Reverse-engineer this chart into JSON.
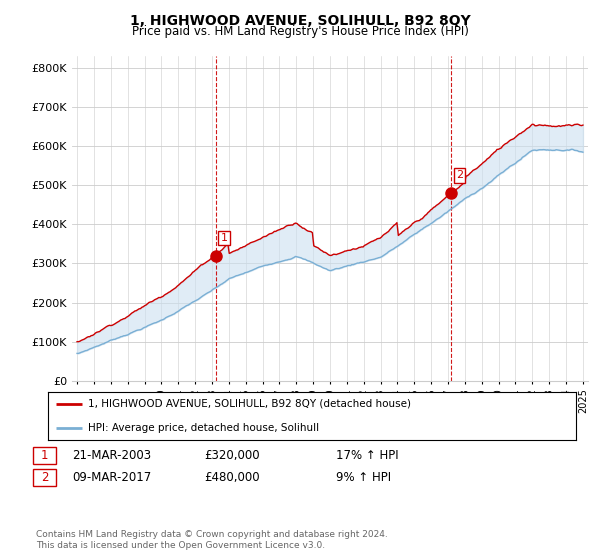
{
  "title": "1, HIGHWOOD AVENUE, SOLIHULL, B92 8QY",
  "subtitle": "Price paid vs. HM Land Registry's House Price Index (HPI)",
  "legend_line1": "1, HIGHWOOD AVENUE, SOLIHULL, B92 8QY (detached house)",
  "legend_line2": "HPI: Average price, detached house, Solihull",
  "annotation1_date": "21-MAR-2003",
  "annotation1_price": "£320,000",
  "annotation1_hpi": "17% ↑ HPI",
  "annotation1_year": 2003.22,
  "annotation1_value": 320000,
  "annotation2_date": "09-MAR-2017",
  "annotation2_price": "£480,000",
  "annotation2_hpi": "9% ↑ HPI",
  "annotation2_year": 2017.19,
  "annotation2_value": 480000,
  "red_color": "#cc0000",
  "blue_color": "#7aafd4",
  "fill_color": "#cce0f0",
  "background_color": "#ffffff",
  "grid_color": "#cccccc",
  "ylim": [
    0,
    830000
  ],
  "yticks": [
    0,
    100000,
    200000,
    300000,
    400000,
    500000,
    600000,
    700000,
    800000
  ],
  "footer1": "Contains HM Land Registry data © Crown copyright and database right 2024.",
  "footer2": "This data is licensed under the Open Government Licence v3.0."
}
